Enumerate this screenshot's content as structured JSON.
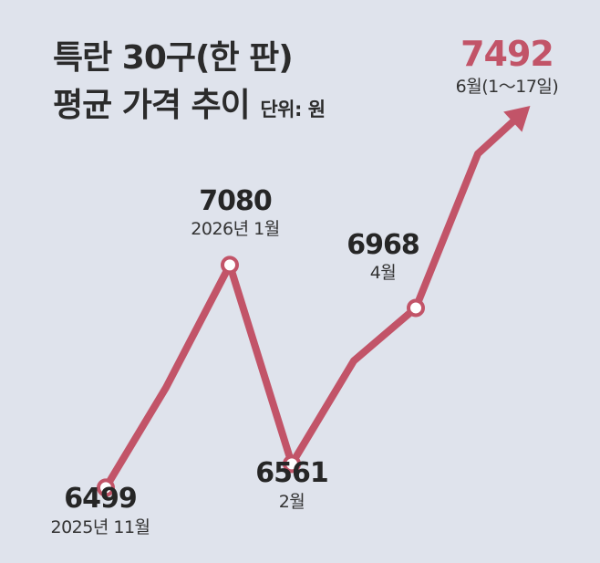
{
  "title": {
    "line1": "특란 30구(한 판)",
    "line2": "평균 가격 추이",
    "unit": "단위: 원"
  },
  "colors": {
    "background": "#dfe3ec",
    "line": "#c25468",
    "text": "#262626",
    "highlight": "#c25468"
  },
  "chart_data": {
    "type": "line",
    "title": "특란 30구(한 판) 평균 가격 추이",
    "unit": "단위: 원",
    "ylim": [
      6400,
      7600
    ],
    "series": [
      {
        "points": [
          {
            "value": 6499,
            "label": "2025년 11월",
            "labeled": true
          },
          {
            "value": 6760,
            "label": "",
            "labeled": false
          },
          {
            "value": 7080,
            "label": "2026년 1월",
            "labeled": true
          },
          {
            "value": 6561,
            "label": "2월",
            "labeled": true
          },
          {
            "value": 6830,
            "label": "",
            "labeled": false
          },
          {
            "value": 6968,
            "label": "4월",
            "labeled": true
          },
          {
            "value": 7370,
            "label": "",
            "labeled": false
          },
          {
            "value": 7492,
            "label": "6월(1～17일)",
            "labeled": true,
            "highlight": true,
            "arrow": true
          }
        ]
      }
    ],
    "grid": false,
    "legend": "none"
  }
}
